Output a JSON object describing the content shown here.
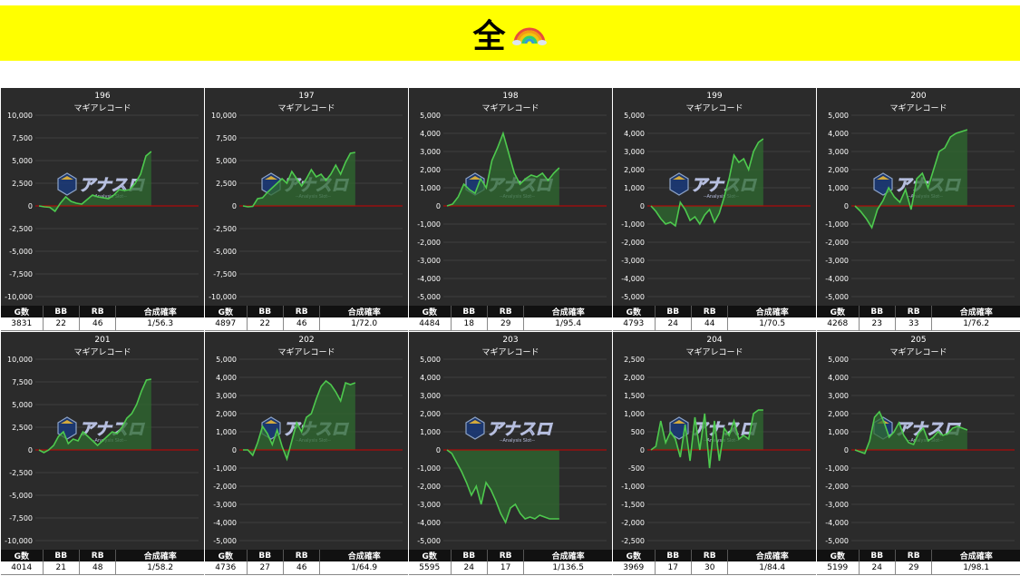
{
  "banner": {
    "title": "全",
    "icon": "rainbow-icon",
    "bg_color": "#ffff00"
  },
  "watermark": {
    "text": "アナスロ",
    "sub": "--Analysis Slot--",
    "icon": "analysis-slot-logo"
  },
  "stats_headers": {
    "games": "G数",
    "bb": "BB",
    "rb": "RB",
    "rate": "合成確率"
  },
  "colors": {
    "line": "#4ec94e",
    "fill": "#2f6b30",
    "zero": "#cc0000",
    "panel": "#2b2b2b",
    "grid": "#555555"
  },
  "machines": [
    {
      "number": "196",
      "name": "マギアレコード",
      "games": "3831",
      "bb": "22",
      "rb": "46",
      "rate": "1/56.3",
      "chart_data": {
        "type": "area",
        "ylim": [
          -10000,
          10000
        ],
        "y_ticks": [
          "10,000",
          "7,500",
          "5,000",
          "2,500",
          "0",
          "-2,500",
          "-5,000",
          "-7,500",
          "-10,000"
        ],
        "x": [
          0,
          1,
          2,
          3,
          4,
          5,
          6,
          7,
          8,
          9,
          10,
          11,
          12,
          13,
          14,
          15,
          16,
          17,
          18,
          19,
          20,
          21
        ],
        "values": [
          0,
          -100,
          -150,
          -600,
          300,
          1000,
          500,
          300,
          200,
          700,
          1200,
          1000,
          900,
          800,
          1200,
          1800,
          1700,
          1800,
          2500,
          3500,
          5500,
          6000
        ]
      }
    },
    {
      "number": "197",
      "name": "マギアレコード",
      "games": "4897",
      "bb": "22",
      "rb": "46",
      "rate": "1/72.0",
      "chart_data": {
        "type": "area",
        "ylim": [
          -10000,
          10000
        ],
        "y_ticks": [
          "10,000",
          "7,500",
          "5,000",
          "2,500",
          "0",
          "-2,500",
          "-5,000",
          "-7,500",
          "-10,000"
        ],
        "x": [
          0,
          1,
          2,
          3,
          4,
          5,
          6,
          7,
          8,
          9,
          10,
          11,
          12,
          13,
          14,
          15,
          16,
          17,
          18,
          19,
          20,
          21,
          22,
          23
        ],
        "values": [
          0,
          -100,
          -50,
          800,
          900,
          1500,
          2000,
          2500,
          3000,
          2500,
          3800,
          3000,
          2200,
          3000,
          4000,
          3200,
          3500,
          2800,
          3500,
          4500,
          3500,
          4800,
          5800,
          5900
        ]
      }
    },
    {
      "number": "198",
      "name": "マギアレコード",
      "games": "4484",
      "bb": "18",
      "rb": "29",
      "rate": "1/95.4",
      "chart_data": {
        "type": "area",
        "ylim": [
          -5000,
          5000
        ],
        "y_ticks": [
          "5,000",
          "4,000",
          "3,000",
          "2,000",
          "1,000",
          "0",
          "-1,000",
          "-2,000",
          "-3,000",
          "-4,000",
          "-5,000"
        ],
        "x": [
          0,
          1,
          2,
          3,
          4,
          5,
          6,
          7,
          8,
          9,
          10,
          11,
          12,
          13,
          14,
          15,
          16,
          17,
          18,
          19,
          20
        ],
        "values": [
          0,
          100,
          500,
          1200,
          900,
          700,
          1500,
          1000,
          2500,
          3200,
          4000,
          2900,
          1800,
          1200,
          1500,
          1700,
          1600,
          1800,
          1400,
          1800,
          2100
        ]
      }
    },
    {
      "number": "199",
      "name": "マギアレコード",
      "games": "4793",
      "bb": "24",
      "rb": "44",
      "rate": "1/70.5",
      "chart_data": {
        "type": "area",
        "ylim": [
          -5000,
          5000
        ],
        "y_ticks": [
          "5,000",
          "4,000",
          "3,000",
          "2,000",
          "1,000",
          "0",
          "-1,000",
          "-2,000",
          "-3,000",
          "-4,000",
          "-5,000"
        ],
        "x": [
          0,
          1,
          2,
          3,
          4,
          5,
          6,
          7,
          8,
          9,
          10,
          11,
          12,
          13,
          14,
          15,
          16,
          17,
          18,
          19,
          20,
          21,
          22,
          23
        ],
        "values": [
          0,
          -300,
          -700,
          -1000,
          -900,
          -1100,
          200,
          -200,
          -800,
          -600,
          -1000,
          -500,
          -200,
          -900,
          -400,
          500,
          1500,
          2800,
          2400,
          2600,
          2000,
          3000,
          3500,
          3700
        ]
      }
    },
    {
      "number": "200",
      "name": "マギアレコード",
      "games": "4268",
      "bb": "23",
      "rb": "33",
      "rate": "1/76.2",
      "chart_data": {
        "type": "area",
        "ylim": [
          -5000,
          5000
        ],
        "y_ticks": [
          "5,000",
          "4,000",
          "3,000",
          "2,000",
          "1,000",
          "0",
          "-1,000",
          "-2,000",
          "-3,000",
          "-4,000",
          "-5,000"
        ],
        "x": [
          0,
          1,
          2,
          3,
          4,
          5,
          6,
          7,
          8,
          9,
          10,
          11,
          12,
          13,
          14,
          15,
          16,
          17,
          18,
          19,
          20
        ],
        "values": [
          0,
          -300,
          -700,
          -1200,
          -200,
          300,
          1000,
          500,
          200,
          900,
          -200,
          1500,
          1800,
          1000,
          2000,
          3000,
          3200,
          3800,
          4000,
          4100,
          4200
        ]
      }
    },
    {
      "number": "201",
      "name": "マギアレコード",
      "games": "4014",
      "bb": "21",
      "rb": "48",
      "rate": "1/58.2",
      "chart_data": {
        "type": "area",
        "ylim": [
          -10000,
          10000
        ],
        "y_ticks": [
          "10,000",
          "7,500",
          "5,000",
          "2,500",
          "0",
          "-2,500",
          "-5,000",
          "-7,500",
          "-10,000"
        ],
        "x": [
          0,
          1,
          2,
          3,
          4,
          5,
          6,
          7,
          8,
          9,
          10,
          11,
          12,
          13,
          14,
          15,
          16,
          17,
          18,
          19,
          20,
          21,
          22,
          23
        ],
        "values": [
          0,
          -300,
          0,
          500,
          1500,
          2000,
          700,
          1200,
          1000,
          2000,
          1500,
          1000,
          500,
          1000,
          1500,
          2000,
          1800,
          2500,
          3500,
          4000,
          5000,
          6500,
          7700,
          7800
        ]
      }
    },
    {
      "number": "202",
      "name": "マギアレコード",
      "games": "4736",
      "bb": "27",
      "rb": "46",
      "rate": "1/64.9",
      "chart_data": {
        "type": "area",
        "ylim": [
          -5000,
          5000
        ],
        "y_ticks": [
          "5,000",
          "4,000",
          "3,000",
          "2,000",
          "1,000",
          "0",
          "-1,000",
          "-2,000",
          "-3,000",
          "-4,000",
          "-5,000"
        ],
        "x": [
          0,
          1,
          2,
          3,
          4,
          5,
          6,
          7,
          8,
          9,
          10,
          11,
          12,
          13,
          14,
          15,
          16,
          17,
          18,
          19,
          20,
          21,
          22,
          23
        ],
        "values": [
          0,
          0,
          -300,
          400,
          1300,
          900,
          300,
          1100,
          200,
          -500,
          500,
          1500,
          1000,
          1800,
          2000,
          2800,
          3500,
          3800,
          3600,
          3200,
          2700,
          3700,
          3600,
          3700
        ]
      }
    },
    {
      "number": "203",
      "name": "マギアレコード",
      "games": "5595",
      "bb": "24",
      "rb": "17",
      "rate": "1/136.5",
      "chart_data": {
        "type": "area",
        "ylim": [
          -5000,
          5000
        ],
        "y_ticks": [
          "5,000",
          "4,000",
          "3,000",
          "2,000",
          "1,000",
          "0",
          "-1,000",
          "-2,000",
          "-3,000",
          "-4,000",
          "-5,000"
        ],
        "x": [
          0,
          1,
          2,
          3,
          4,
          5,
          6,
          7,
          8,
          9,
          10,
          11,
          12,
          13,
          14,
          15,
          16,
          17,
          18,
          19,
          20,
          21,
          22,
          23
        ],
        "values": [
          0,
          -200,
          -700,
          -1200,
          -1800,
          -2500,
          -2000,
          -3000,
          -1800,
          -2200,
          -2800,
          -3500,
          -4000,
          -3200,
          -3000,
          -3500,
          -3800,
          -3700,
          -3800,
          -3600,
          -3700,
          -3800,
          -3800,
          -3800
        ]
      }
    },
    {
      "number": "204",
      "name": "マギアレコード",
      "games": "3969",
      "bb": "17",
      "rb": "30",
      "rate": "1/84.4",
      "chart_data": {
        "type": "area",
        "ylim": [
          -2500,
          2500
        ],
        "y_ticks": [
          "2,500",
          "2,000",
          "1,500",
          "1,000",
          "500",
          "0",
          "-500",
          "-1,000",
          "-1,500",
          "-2,000",
          "-2,500"
        ],
        "x": [
          0,
          1,
          2,
          3,
          4,
          5,
          6,
          7,
          8,
          9,
          10,
          11,
          12,
          13,
          14,
          15,
          16,
          17,
          18,
          19,
          20,
          21,
          22,
          23
        ],
        "values": [
          0,
          100,
          800,
          200,
          500,
          300,
          -200,
          700,
          -300,
          900,
          0,
          1000,
          -500,
          800,
          -300,
          600,
          400,
          800,
          300,
          400,
          300,
          1000,
          1100,
          1100
        ]
      }
    },
    {
      "number": "205",
      "name": "マギアレコード",
      "games": "5199",
      "bb": "24",
      "rb": "29",
      "rate": "1/98.1",
      "chart_data": {
        "type": "area",
        "ylim": [
          -5000,
          5000
        ],
        "y_ticks": [
          "5,000",
          "4,000",
          "3,000",
          "2,000",
          "1,000",
          "0",
          "-1,000",
          "-2,000",
          "-3,000",
          "-4,000",
          "-5,000"
        ],
        "x": [
          0,
          1,
          2,
          3,
          4,
          5,
          6,
          7,
          8,
          9,
          10,
          11,
          12,
          13,
          14,
          15,
          16,
          17,
          18,
          19,
          20,
          21,
          22,
          23
        ],
        "values": [
          0,
          -100,
          -200,
          500,
          1800,
          2100,
          1500,
          700,
          1000,
          1500,
          800,
          400,
          300,
          900,
          1200,
          500,
          700,
          1000,
          800,
          900,
          1200,
          1300,
          1200,
          1100
        ]
      }
    }
  ]
}
